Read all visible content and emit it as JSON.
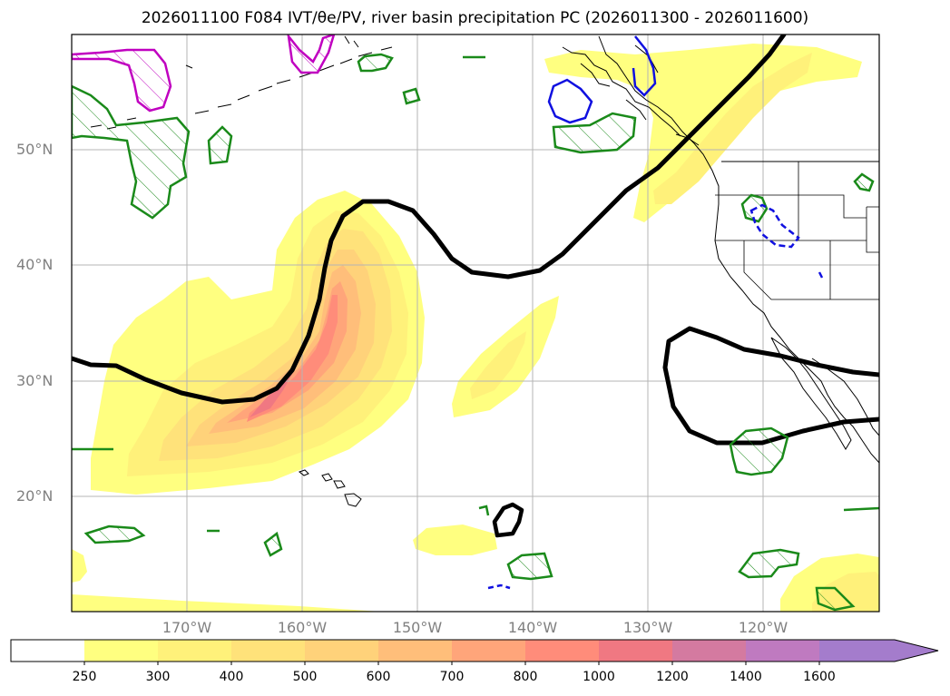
{
  "title": "2026011100 F084 IVT/θe/PV, river basin precipitation PC (2026011300 - 2026011600)",
  "map": {
    "extent": {
      "lon_min": 180,
      "lon_max": 250,
      "lat_min": 10,
      "lat_max": 60
    },
    "lat_labels": [
      "50°N",
      "40°N",
      "30°N",
      "20°N"
    ],
    "lon_labels": [
      "170°W",
      "160°W",
      "150°W",
      "140°W",
      "130°W",
      "120°W"
    ]
  },
  "colorbar": {
    "levels": [
      "250",
      "300",
      "400",
      "500",
      "600",
      "700",
      "800",
      "1000",
      "1200",
      "1400",
      "1600"
    ],
    "colors": [
      "#ffffff",
      "#ffff80",
      "#fff17a",
      "#ffe27a",
      "#ffd27a",
      "#ffbe7a",
      "#ffa57a",
      "#ff8c7a",
      "#f07882",
      "#d47aa0",
      "#bf7ac0",
      "#a47ccc"
    ]
  }
}
